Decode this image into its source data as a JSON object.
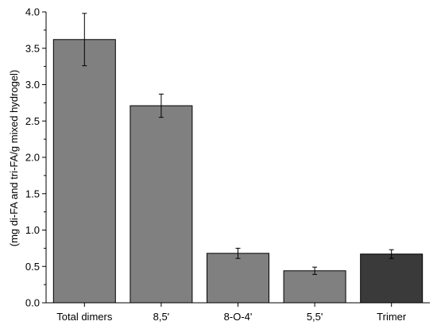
{
  "chart_data": {
    "type": "bar",
    "title": "",
    "xlabel": "",
    "ylabel": "(mg di-FA and tri-FA/g mixed hydrogel)",
    "ylim": [
      0,
      4.0
    ],
    "yticks": [
      "0.0",
      "0.5",
      "1.0",
      "1.5",
      "2.0",
      "2.5",
      "3.0",
      "3.5",
      "4.0"
    ],
    "categories": [
      "Total dimers",
      "8,5'",
      "8-O-4'",
      "5,5'",
      "Trimer"
    ],
    "values": [
      3.62,
      2.71,
      0.68,
      0.44,
      0.67
    ],
    "errors": [
      0.36,
      0.16,
      0.07,
      0.05,
      0.06
    ],
    "colors": [
      "#808080",
      "#808080",
      "#808080",
      "#808080",
      "#3a3a3a"
    ],
    "grid": false,
    "legend": "none"
  }
}
